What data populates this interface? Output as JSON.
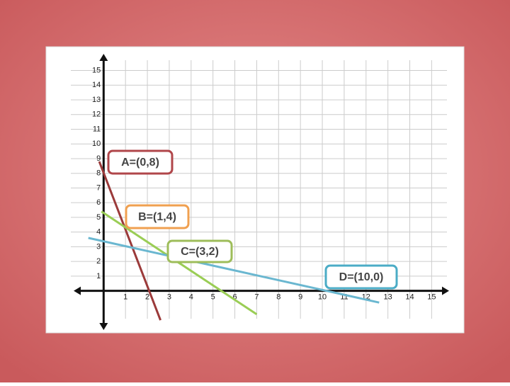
{
  "chart_data": {
    "type": "line",
    "xlim": [
      -1.5,
      15.7
    ],
    "ylim": [
      -1.9,
      15.7
    ],
    "xticks": [
      1,
      2,
      3,
      4,
      5,
      6,
      7,
      8,
      9,
      10,
      11,
      12,
      13,
      14,
      15
    ],
    "yticks": [
      1,
      2,
      3,
      4,
      5,
      6,
      7,
      8,
      9,
      10,
      11,
      12,
      13,
      14,
      15
    ],
    "grid": true,
    "series": [
      {
        "color": "#9b3a3a",
        "x": [
          -0.2,
          2.6
        ],
        "values": [
          8.8,
          -2
        ]
      },
      {
        "color": "#9acd55",
        "x": [
          -0.1,
          7
        ],
        "values": [
          5.4,
          -1.6
        ]
      },
      {
        "color": "#6ab7d0",
        "x": [
          -0.7,
          12.6
        ],
        "values": [
          3.6,
          -0.8
        ]
      }
    ],
    "annotations": [
      {
        "text": "A=(0,8)",
        "color": "#b0464a"
      },
      {
        "text": "B=(1,4)",
        "color": "#f0a050"
      },
      {
        "text": "C=(3,2)",
        "color": "#9ebd5a"
      },
      {
        "text": "D=(10,0)",
        "color": "#4bacc6"
      }
    ]
  }
}
